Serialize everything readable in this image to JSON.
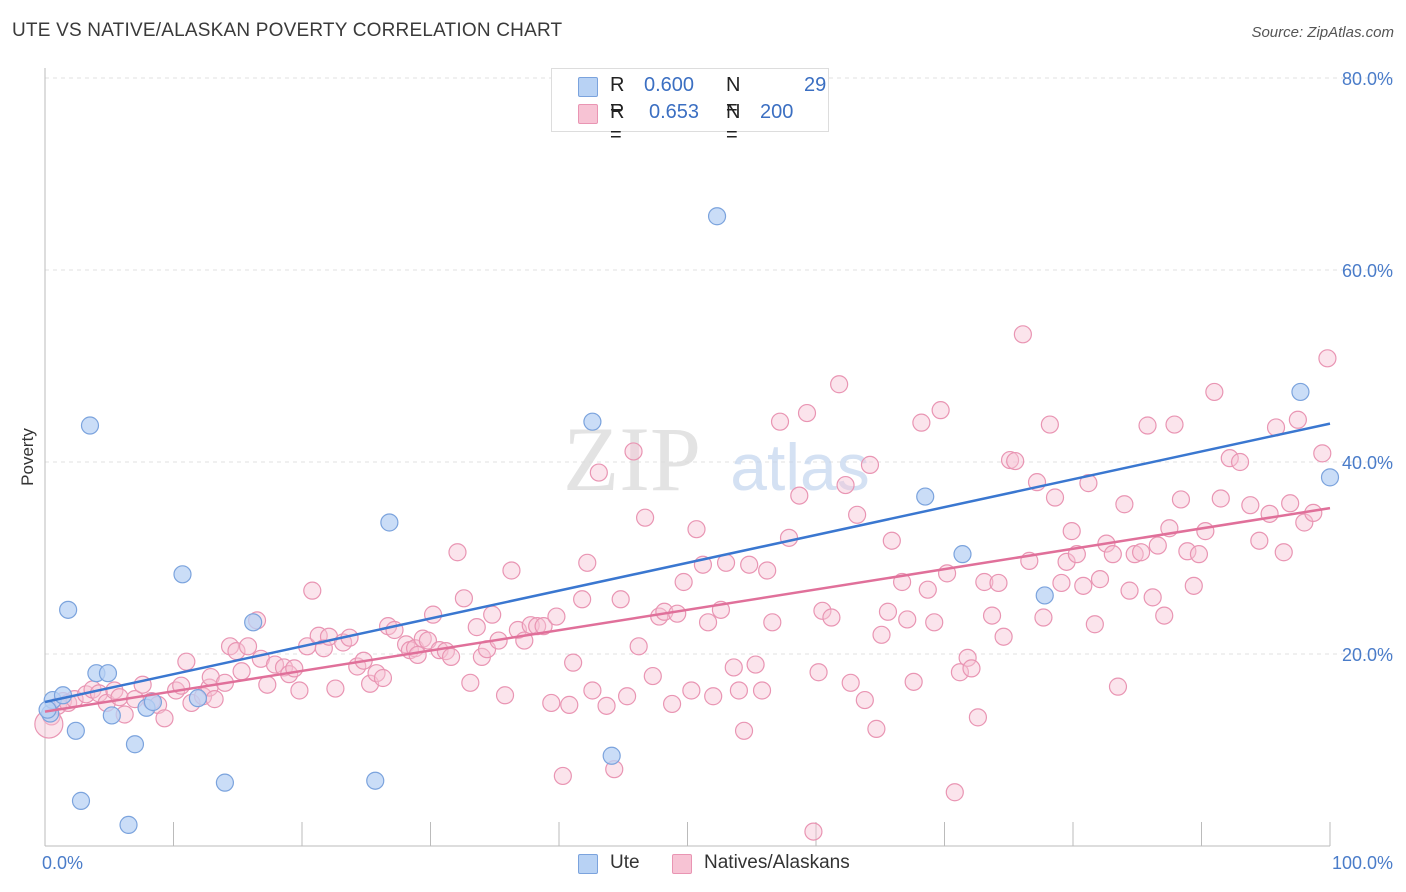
{
  "title": "UTE VS NATIVE/ALASKAN POVERTY CORRELATION CHART",
  "source": "Source: ZipAtlas.com",
  "watermark": {
    "zip": "ZIP",
    "atlas": "atlas"
  },
  "legend": {
    "rows": [
      {
        "r_label": "R =",
        "r_value": "0.600",
        "n_label": "N =",
        "n_value": "29"
      },
      {
        "r_label": "R =",
        "r_value": "0.653",
        "n_label": "N =",
        "n_value": "200"
      }
    ]
  },
  "bottom_legend": [
    "Ute",
    "Natives/Alaskans"
  ],
  "colors": {
    "ute_fill": "#b8d2f4",
    "ute_stroke": "#7ba3dd",
    "ute_line": "#3a77d0",
    "nat_fill": "#f7c3d4",
    "nat_stroke": "#e995b3",
    "nat_line": "#e0709a",
    "tick_label": "#4a7cc9",
    "grid": "#e2e2e2"
  },
  "chart_data": {
    "type": "scatter",
    "title": "UTE VS NATIVE/ALASKAN POVERTY CORRELATION CHART",
    "xlabel": "",
    "ylabel": "Poverty",
    "xlim": [
      0,
      100
    ],
    "ylim": [
      0,
      80
    ],
    "x_tick_labels": [
      "0.0%",
      "100.0%"
    ],
    "y_ticks": [
      20,
      40,
      60,
      80
    ],
    "y_tick_labels": [
      "20.0%",
      "40.0%",
      "60.0%",
      "80.0%"
    ],
    "grid": true,
    "legend_position": "top-center",
    "series": [
      {
        "name": "Ute",
        "r": 0.6,
        "n": 29,
        "trend": [
          [
            0,
            15.0
          ],
          [
            100,
            44.0
          ]
        ],
        "points": [
          [
            0.4,
            13.8
          ],
          [
            0.6,
            15.2
          ],
          [
            1.4,
            15.7
          ],
          [
            1.8,
            24.6
          ],
          [
            2.4,
            12.0
          ],
          [
            2.8,
            4.7
          ],
          [
            3.5,
            43.8
          ],
          [
            4.0,
            18.0
          ],
          [
            4.9,
            18.0
          ],
          [
            5.2,
            13.6
          ],
          [
            6.5,
            2.2
          ],
          [
            7.0,
            10.6
          ],
          [
            7.9,
            14.4
          ],
          [
            8.4,
            15.0
          ],
          [
            10.7,
            28.3
          ],
          [
            11.9,
            15.4
          ],
          [
            14.0,
            6.6
          ],
          [
            16.2,
            23.3
          ],
          [
            25.7,
            6.8
          ],
          [
            26.8,
            33.7
          ],
          [
            42.6,
            44.2
          ],
          [
            44.1,
            9.4
          ],
          [
            52.3,
            65.6
          ],
          [
            68.5,
            36.4
          ],
          [
            71.4,
            30.4
          ],
          [
            77.8,
            26.1
          ],
          [
            97.7,
            47.3
          ],
          [
            100.0,
            38.4
          ],
          [
            0.2,
            14.2
          ]
        ]
      },
      {
        "name": "Natives/Alaskans",
        "r": 0.653,
        "n": 200,
        "trend": [
          [
            0,
            14.0
          ],
          [
            100,
            35.2
          ]
        ],
        "points": [
          [
            0.5,
            13.5
          ],
          [
            1.0,
            14.6
          ],
          [
            1.4,
            15.1
          ],
          [
            1.8,
            14.9
          ],
          [
            2.3,
            15.3
          ],
          [
            3.2,
            15.8
          ],
          [
            3.7,
            16.3
          ],
          [
            4.2,
            15.9
          ],
          [
            4.8,
            14.9
          ],
          [
            5.4,
            16.2
          ],
          [
            5.8,
            15.5
          ],
          [
            6.2,
            13.7
          ],
          [
            7.0,
            15.3
          ],
          [
            7.6,
            16.8
          ],
          [
            8.3,
            15.1
          ],
          [
            8.8,
            14.7
          ],
          [
            9.3,
            13.3
          ],
          [
            10.2,
            16.2
          ],
          [
            10.6,
            16.7
          ],
          [
            11.0,
            19.2
          ],
          [
            11.4,
            14.9
          ],
          [
            12.3,
            15.6
          ],
          [
            12.8,
            16.5
          ],
          [
            12.9,
            17.6
          ],
          [
            13.2,
            15.3
          ],
          [
            14.0,
            17.0
          ],
          [
            14.4,
            20.8
          ],
          [
            14.9,
            20.3
          ],
          [
            15.3,
            18.2
          ],
          [
            15.8,
            20.8
          ],
          [
            16.5,
            23.5
          ],
          [
            16.8,
            19.5
          ],
          [
            17.3,
            16.8
          ],
          [
            17.9,
            18.9
          ],
          [
            18.6,
            18.6
          ],
          [
            19.0,
            17.9
          ],
          [
            19.4,
            18.5
          ],
          [
            19.8,
            16.2
          ],
          [
            20.4,
            20.8
          ],
          [
            20.8,
            26.6
          ],
          [
            21.3,
            21.9
          ],
          [
            21.7,
            20.6
          ],
          [
            22.1,
            21.8
          ],
          [
            22.6,
            16.4
          ],
          [
            23.2,
            21.2
          ],
          [
            23.7,
            21.7
          ],
          [
            24.3,
            18.7
          ],
          [
            24.8,
            19.3
          ],
          [
            25.3,
            16.9
          ],
          [
            25.8,
            18.0
          ],
          [
            26.3,
            17.5
          ],
          [
            26.7,
            22.9
          ],
          [
            27.2,
            22.5
          ],
          [
            28.1,
            21.0
          ],
          [
            28.4,
            20.4
          ],
          [
            28.8,
            20.6
          ],
          [
            29.0,
            19.9
          ],
          [
            29.4,
            21.6
          ],
          [
            29.8,
            21.4
          ],
          [
            30.2,
            24.1
          ],
          [
            30.7,
            20.4
          ],
          [
            31.2,
            20.3
          ],
          [
            31.6,
            19.7
          ],
          [
            32.1,
            30.6
          ],
          [
            32.6,
            25.8
          ],
          [
            33.1,
            17.0
          ],
          [
            33.6,
            22.8
          ],
          [
            34.0,
            19.7
          ],
          [
            34.4,
            20.5
          ],
          [
            34.8,
            24.1
          ],
          [
            35.3,
            21.4
          ],
          [
            35.8,
            15.7
          ],
          [
            36.3,
            28.7
          ],
          [
            36.8,
            22.5
          ],
          [
            37.3,
            21.4
          ],
          [
            37.8,
            23.0
          ],
          [
            38.3,
            22.9
          ],
          [
            38.8,
            22.9
          ],
          [
            39.4,
            14.9
          ],
          [
            39.8,
            23.9
          ],
          [
            40.3,
            7.3
          ],
          [
            40.8,
            14.7
          ],
          [
            41.1,
            19.1
          ],
          [
            41.8,
            25.7
          ],
          [
            42.2,
            29.5
          ],
          [
            42.6,
            16.2
          ],
          [
            43.1,
            38.9
          ],
          [
            43.7,
            14.6
          ],
          [
            44.3,
            8.0
          ],
          [
            44.8,
            25.7
          ],
          [
            45.3,
            15.6
          ],
          [
            45.8,
            41.1
          ],
          [
            46.2,
            20.8
          ],
          [
            46.7,
            34.2
          ],
          [
            47.3,
            17.7
          ],
          [
            47.8,
            23.9
          ],
          [
            48.2,
            24.4
          ],
          [
            48.8,
            14.8
          ],
          [
            49.2,
            24.2
          ],
          [
            49.7,
            27.5
          ],
          [
            50.3,
            16.2
          ],
          [
            50.7,
            33.0
          ],
          [
            51.2,
            29.3
          ],
          [
            51.6,
            23.3
          ],
          [
            52.0,
            15.6
          ],
          [
            52.6,
            24.6
          ],
          [
            53.0,
            29.5
          ],
          [
            53.6,
            18.6
          ],
          [
            54.0,
            16.2
          ],
          [
            54.4,
            12.0
          ],
          [
            54.8,
            29.3
          ],
          [
            55.3,
            18.9
          ],
          [
            55.8,
            16.2
          ],
          [
            56.2,
            28.7
          ],
          [
            56.6,
            23.3
          ],
          [
            57.2,
            44.2
          ],
          [
            57.9,
            32.1
          ],
          [
            58.7,
            36.5
          ],
          [
            59.3,
            45.1
          ],
          [
            59.8,
            1.5
          ],
          [
            60.2,
            18.1
          ],
          [
            60.5,
            24.5
          ],
          [
            61.2,
            23.8
          ],
          [
            61.8,
            48.1
          ],
          [
            62.3,
            37.6
          ],
          [
            62.7,
            17.0
          ],
          [
            63.2,
            34.5
          ],
          [
            63.8,
            15.2
          ],
          [
            64.2,
            39.7
          ],
          [
            64.7,
            12.2
          ],
          [
            65.1,
            22.0
          ],
          [
            65.6,
            24.4
          ],
          [
            65.9,
            31.8
          ],
          [
            66.7,
            27.5
          ],
          [
            67.1,
            23.6
          ],
          [
            67.6,
            17.1
          ],
          [
            68.2,
            44.1
          ],
          [
            68.7,
            26.7
          ],
          [
            69.2,
            23.3
          ],
          [
            69.7,
            45.4
          ],
          [
            70.2,
            28.4
          ],
          [
            70.8,
            5.6
          ],
          [
            71.2,
            18.1
          ],
          [
            71.8,
            19.6
          ],
          [
            72.1,
            18.5
          ],
          [
            72.6,
            13.4
          ],
          [
            73.1,
            27.5
          ],
          [
            73.7,
            24.0
          ],
          [
            74.2,
            27.4
          ],
          [
            74.6,
            21.8
          ],
          [
            75.1,
            40.2
          ],
          [
            75.5,
            40.1
          ],
          [
            76.1,
            53.3
          ],
          [
            76.6,
            29.7
          ],
          [
            77.2,
            37.9
          ],
          [
            77.7,
            23.8
          ],
          [
            78.2,
            43.9
          ],
          [
            78.6,
            36.3
          ],
          [
            79.1,
            27.4
          ],
          [
            79.5,
            29.6
          ],
          [
            79.9,
            32.8
          ],
          [
            80.3,
            30.4
          ],
          [
            80.8,
            27.1
          ],
          [
            81.2,
            37.8
          ],
          [
            81.7,
            23.1
          ],
          [
            82.1,
            27.8
          ],
          [
            82.6,
            31.5
          ],
          [
            83.1,
            30.4
          ],
          [
            83.5,
            16.6
          ],
          [
            84.0,
            35.6
          ],
          [
            84.4,
            26.6
          ],
          [
            84.8,
            30.4
          ],
          [
            85.3,
            30.6
          ],
          [
            85.8,
            43.8
          ],
          [
            86.2,
            25.9
          ],
          [
            86.6,
            31.3
          ],
          [
            87.1,
            24.0
          ],
          [
            87.5,
            33.1
          ],
          [
            87.9,
            43.9
          ],
          [
            88.4,
            36.1
          ],
          [
            88.9,
            30.7
          ],
          [
            89.4,
            27.1
          ],
          [
            89.8,
            30.4
          ],
          [
            90.3,
            32.8
          ],
          [
            91.0,
            47.3
          ],
          [
            91.5,
            36.2
          ],
          [
            92.2,
            40.4
          ],
          [
            93.0,
            40.0
          ],
          [
            93.8,
            35.5
          ],
          [
            94.5,
            31.8
          ],
          [
            95.3,
            34.6
          ],
          [
            95.8,
            43.6
          ],
          [
            96.4,
            30.6
          ],
          [
            96.9,
            35.7
          ],
          [
            97.5,
            44.4
          ],
          [
            98.0,
            33.7
          ],
          [
            98.7,
            34.7
          ],
          [
            99.4,
            40.9
          ],
          [
            99.8,
            50.8
          ],
          [
            0.3,
            12.7
          ]
        ]
      }
    ]
  }
}
